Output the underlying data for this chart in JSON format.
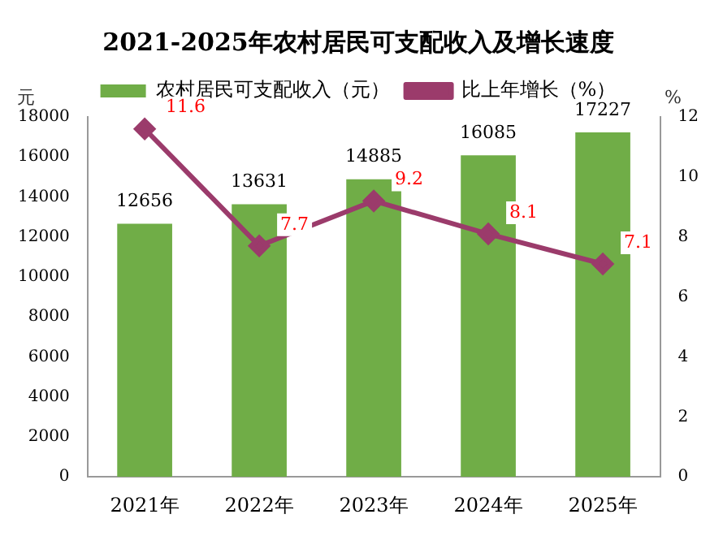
{
  "chart_data": {
    "type": "bar",
    "title": "2021-2025年农村居民可支配收入及增长速度",
    "ylabel": "元",
    "y2label": "%",
    "categories": [
      "2021年",
      "2022年",
      "2023年",
      "2024年",
      "2025年"
    ],
    "series": [
      {
        "name": "农村居民可支配收入（元）",
        "color": "#70ad47",
        "values": [
          12656,
          13631,
          14885,
          16085,
          17227
        ]
      },
      {
        "name": "比上年增长（%）",
        "type": "line",
        "axis": "y2",
        "color": "#9b3b6b",
        "marker": "diamond",
        "values": [
          11.6,
          7.7,
          9.2,
          8.1,
          7.1
        ]
      }
    ],
    "ylim": [
      0,
      18000
    ],
    "yticks": [
      0,
      2000,
      4000,
      6000,
      8000,
      10000,
      12000,
      14000,
      16000,
      18000
    ],
    "y2lim": [
      0,
      12
    ],
    "y2ticks": [
      0,
      2,
      4,
      6,
      8,
      10,
      12
    ],
    "data_labels": true,
    "legend": "top",
    "grid": false
  }
}
